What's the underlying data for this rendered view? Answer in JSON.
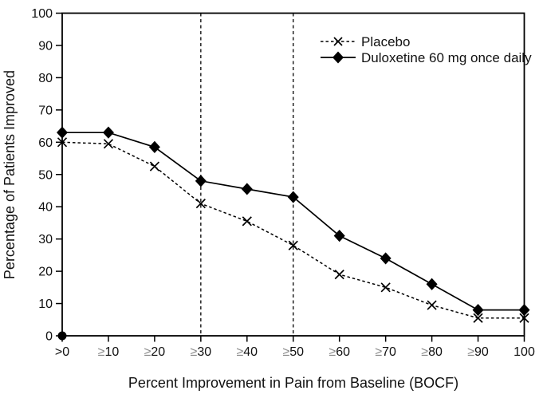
{
  "figure": {
    "background_color": "#ffffff",
    "line_color": "#000000",
    "text_color": "#111111",
    "gte_symbol_color": "#8a8a8a"
  },
  "legend": {
    "position": "top-right",
    "items": [
      {
        "label": "Placebo",
        "line_style": "dashed",
        "marker": "x-marker"
      },
      {
        "label": "Duloxetine 60 mg once daily",
        "line_style": "solid",
        "marker": "diamond-marker"
      }
    ]
  },
  "chart_data": {
    "type": "line",
    "title": "",
    "xlabel": "Percent Improvement in Pain from Baseline (BOCF)",
    "ylabel": "Percentage of Patients Improved",
    "categories": [
      ">0",
      "≥10",
      "≥20",
      "≥30",
      "≥40",
      "≥50",
      "≥60",
      "≥70",
      "≥80",
      "≥90",
      "100"
    ],
    "series": [
      {
        "name": "Placebo",
        "line_style": "dashed",
        "marker": "x",
        "values": [
          60,
          59.5,
          52.5,
          41,
          35.5,
          28,
          19,
          15,
          9.5,
          5.5,
          5.5
        ]
      },
      {
        "name": "Duloxetine 60 mg once daily",
        "line_style": "solid",
        "marker": "diamond",
        "values": [
          63,
          63,
          58.5,
          48,
          45.5,
          43,
          31,
          24,
          16,
          8,
          8
        ]
      }
    ],
    "ylim": [
      0,
      100
    ],
    "y_ticks": [
      0,
      10,
      20,
      30,
      40,
      50,
      60,
      70,
      80,
      90,
      100
    ],
    "reference_lines_x": [
      "≥30",
      "≥50"
    ],
    "origin_point": {
      "category": ">0",
      "value": 0,
      "marker": "filled-circle"
    },
    "grid": false,
    "frame": "full-box",
    "legend_position": "top-right"
  }
}
